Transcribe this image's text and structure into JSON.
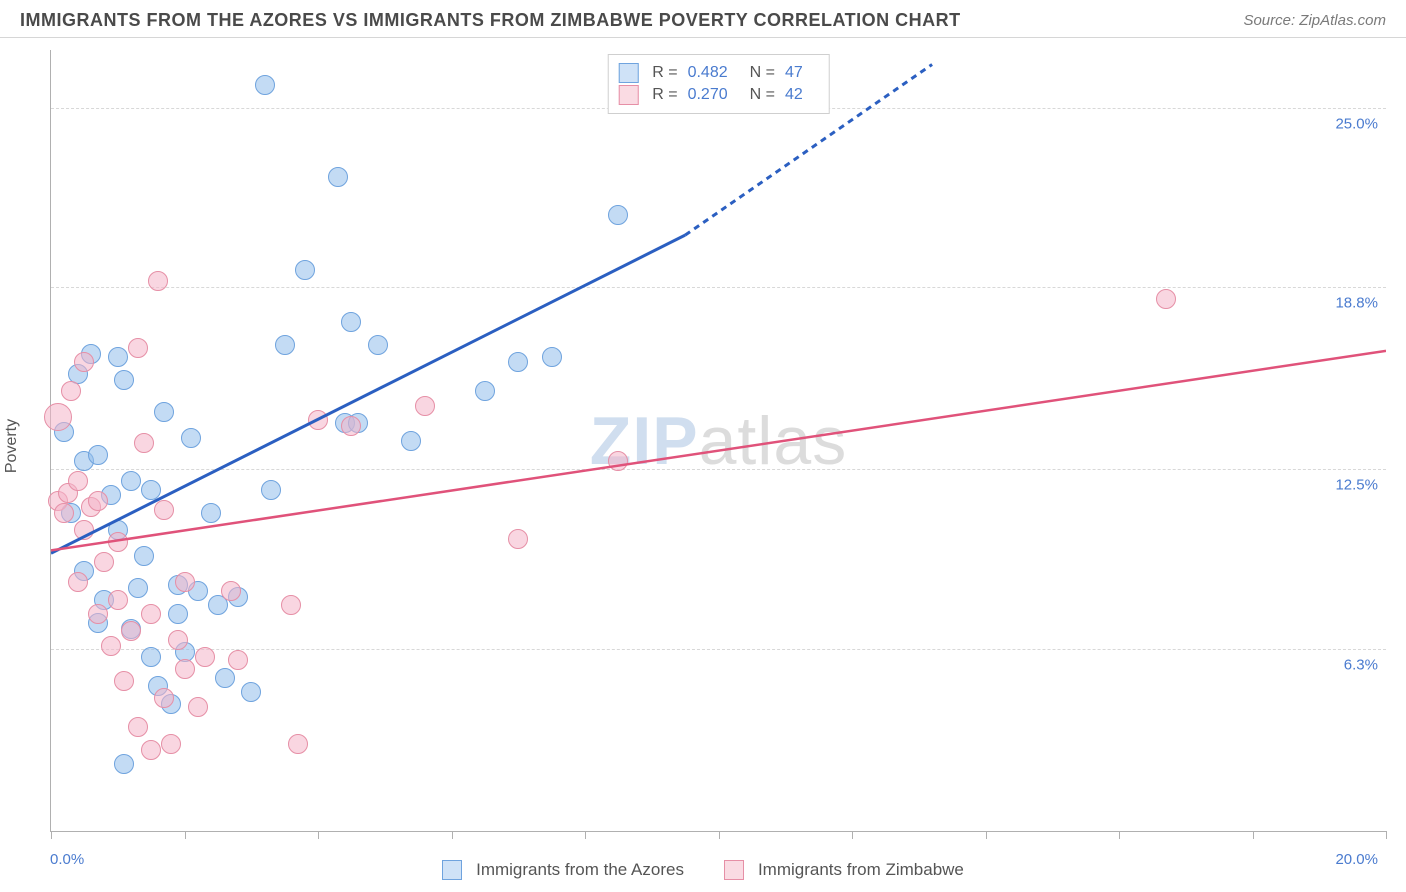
{
  "header": {
    "title": "IMMIGRANTS FROM THE AZORES VS IMMIGRANTS FROM ZIMBABWE POVERTY CORRELATION CHART",
    "source": "Source: ZipAtlas.com"
  },
  "chart": {
    "type": "scatter",
    "ylabel": "Poverty",
    "xlim": [
      0.0,
      20.0
    ],
    "ylim": [
      0.0,
      27.0
    ],
    "x_ticks_pct": [
      0,
      10,
      20,
      30,
      40,
      50,
      60,
      70,
      80,
      90,
      100
    ],
    "x_axis_labels": {
      "start": "0.0%",
      "end": "20.0%"
    },
    "y_gridlines": [
      {
        "value": 6.3,
        "label": "6.3%"
      },
      {
        "value": 12.5,
        "label": "12.5%"
      },
      {
        "value": 18.8,
        "label": "18.8%"
      },
      {
        "value": 25.0,
        "label": "25.0%"
      }
    ],
    "grid_color": "#d8d8d8",
    "axis_color": "#b0b0b0",
    "background_color": "#ffffff",
    "watermark": {
      "part1": "ZIP",
      "part2": "atlas"
    },
    "legend_top": {
      "rows": [
        {
          "swatch_fill": "#cfe2f7",
          "swatch_border": "#6fa3de",
          "r_label": "R =",
          "r_value": "0.482",
          "n_label": "N =",
          "n_value": "47"
        },
        {
          "swatch_fill": "#fadbe3",
          "swatch_border": "#e68fa6",
          "r_label": "R =",
          "r_value": "0.270",
          "n_label": "N =",
          "n_value": "42"
        }
      ]
    },
    "legend_bottom": {
      "items": [
        {
          "swatch_fill": "#cfe2f7",
          "swatch_border": "#6fa3de",
          "label": "Immigrants from the Azores"
        },
        {
          "swatch_fill": "#fadbe3",
          "swatch_border": "#e68fa6",
          "label": "Immigrants from Zimbabwe"
        }
      ]
    },
    "series": [
      {
        "name": "azores",
        "fill": "rgba(145,190,235,0.55)",
        "stroke": "#6fa3de",
        "marker_radius": 10,
        "trend_color": "#2b5fc1",
        "trend_width": 3,
        "trend": {
          "x1": 0.0,
          "y1": 9.6,
          "x2": 9.5,
          "y2": 20.6,
          "dash_to_x": 13.2,
          "dash_to_y": 26.5
        },
        "points": [
          {
            "x": 0.2,
            "y": 13.8
          },
          {
            "x": 0.3,
            "y": 11.0
          },
          {
            "x": 0.4,
            "y": 15.8
          },
          {
            "x": 0.5,
            "y": 9.0
          },
          {
            "x": 0.5,
            "y": 12.8
          },
          {
            "x": 0.6,
            "y": 16.5
          },
          {
            "x": 0.7,
            "y": 13.0
          },
          {
            "x": 0.7,
            "y": 7.2
          },
          {
            "x": 0.8,
            "y": 8.0
          },
          {
            "x": 0.9,
            "y": 11.6
          },
          {
            "x": 1.0,
            "y": 16.4
          },
          {
            "x": 1.0,
            "y": 10.4
          },
          {
            "x": 1.1,
            "y": 15.6
          },
          {
            "x": 1.2,
            "y": 7.0
          },
          {
            "x": 1.2,
            "y": 12.1
          },
          {
            "x": 1.3,
            "y": 8.4
          },
          {
            "x": 1.4,
            "y": 9.5
          },
          {
            "x": 1.5,
            "y": 6.0
          },
          {
            "x": 1.5,
            "y": 11.8
          },
          {
            "x": 1.6,
            "y": 5.0
          },
          {
            "x": 1.7,
            "y": 14.5
          },
          {
            "x": 1.8,
            "y": 4.4
          },
          {
            "x": 1.9,
            "y": 7.5
          },
          {
            "x": 1.9,
            "y": 8.5
          },
          {
            "x": 2.0,
            "y": 6.2
          },
          {
            "x": 2.1,
            "y": 13.6
          },
          {
            "x": 2.2,
            "y": 8.3
          },
          {
            "x": 2.4,
            "y": 11.0
          },
          {
            "x": 2.5,
            "y": 7.8
          },
          {
            "x": 2.6,
            "y": 5.3
          },
          {
            "x": 2.8,
            "y": 8.1
          },
          {
            "x": 3.0,
            "y": 4.8
          },
          {
            "x": 3.2,
            "y": 25.8
          },
          {
            "x": 3.3,
            "y": 11.8
          },
          {
            "x": 3.5,
            "y": 16.8
          },
          {
            "x": 3.8,
            "y": 19.4
          },
          {
            "x": 4.3,
            "y": 22.6
          },
          {
            "x": 4.4,
            "y": 14.1
          },
          {
            "x": 4.5,
            "y": 17.6
          },
          {
            "x": 4.6,
            "y": 14.1
          },
          {
            "x": 4.9,
            "y": 16.8
          },
          {
            "x": 5.4,
            "y": 13.5
          },
          {
            "x": 6.5,
            "y": 15.2
          },
          {
            "x": 7.0,
            "y": 16.2
          },
          {
            "x": 7.5,
            "y": 16.4
          },
          {
            "x": 8.5,
            "y": 21.3
          },
          {
            "x": 1.1,
            "y": 2.3
          }
        ]
      },
      {
        "name": "zimbabwe",
        "fill": "rgba(244,180,200,0.55)",
        "stroke": "#e68fa6",
        "marker_radius": 10,
        "trend_color": "#e0527a",
        "trend_width": 2.5,
        "trend": {
          "x1": 0.0,
          "y1": 9.7,
          "x2": 20.0,
          "y2": 16.6
        },
        "points": [
          {
            "x": 0.1,
            "y": 14.3,
            "r": 14
          },
          {
            "x": 0.1,
            "y": 11.4
          },
          {
            "x": 0.2,
            "y": 11.0
          },
          {
            "x": 0.25,
            "y": 11.7
          },
          {
            "x": 0.3,
            "y": 15.2
          },
          {
            "x": 0.4,
            "y": 12.1
          },
          {
            "x": 0.4,
            "y": 8.6
          },
          {
            "x": 0.5,
            "y": 10.4
          },
          {
            "x": 0.5,
            "y": 16.2
          },
          {
            "x": 0.6,
            "y": 11.2
          },
          {
            "x": 0.7,
            "y": 11.4
          },
          {
            "x": 0.7,
            "y": 7.5
          },
          {
            "x": 0.8,
            "y": 9.3
          },
          {
            "x": 0.9,
            "y": 6.4
          },
          {
            "x": 1.0,
            "y": 8.0
          },
          {
            "x": 1.0,
            "y": 10.0
          },
          {
            "x": 1.1,
            "y": 5.2
          },
          {
            "x": 1.2,
            "y": 6.9
          },
          {
            "x": 1.3,
            "y": 3.6
          },
          {
            "x": 1.3,
            "y": 16.7
          },
          {
            "x": 1.4,
            "y": 13.4
          },
          {
            "x": 1.5,
            "y": 7.5
          },
          {
            "x": 1.5,
            "y": 2.8
          },
          {
            "x": 1.6,
            "y": 19.0
          },
          {
            "x": 1.7,
            "y": 4.6
          },
          {
            "x": 1.7,
            "y": 11.1
          },
          {
            "x": 1.8,
            "y": 3.0
          },
          {
            "x": 1.9,
            "y": 6.6
          },
          {
            "x": 2.0,
            "y": 5.6
          },
          {
            "x": 2.0,
            "y": 8.6
          },
          {
            "x": 2.2,
            "y": 4.3
          },
          {
            "x": 2.3,
            "y": 6.0
          },
          {
            "x": 2.7,
            "y": 8.3
          },
          {
            "x": 2.8,
            "y": 5.9
          },
          {
            "x": 3.6,
            "y": 7.8
          },
          {
            "x": 3.7,
            "y": 3.0
          },
          {
            "x": 4.0,
            "y": 14.2
          },
          {
            "x": 4.5,
            "y": 14.0
          },
          {
            "x": 5.6,
            "y": 14.7
          },
          {
            "x": 7.0,
            "y": 10.1
          },
          {
            "x": 8.5,
            "y": 12.8
          },
          {
            "x": 16.7,
            "y": 18.4
          }
        ]
      }
    ]
  }
}
